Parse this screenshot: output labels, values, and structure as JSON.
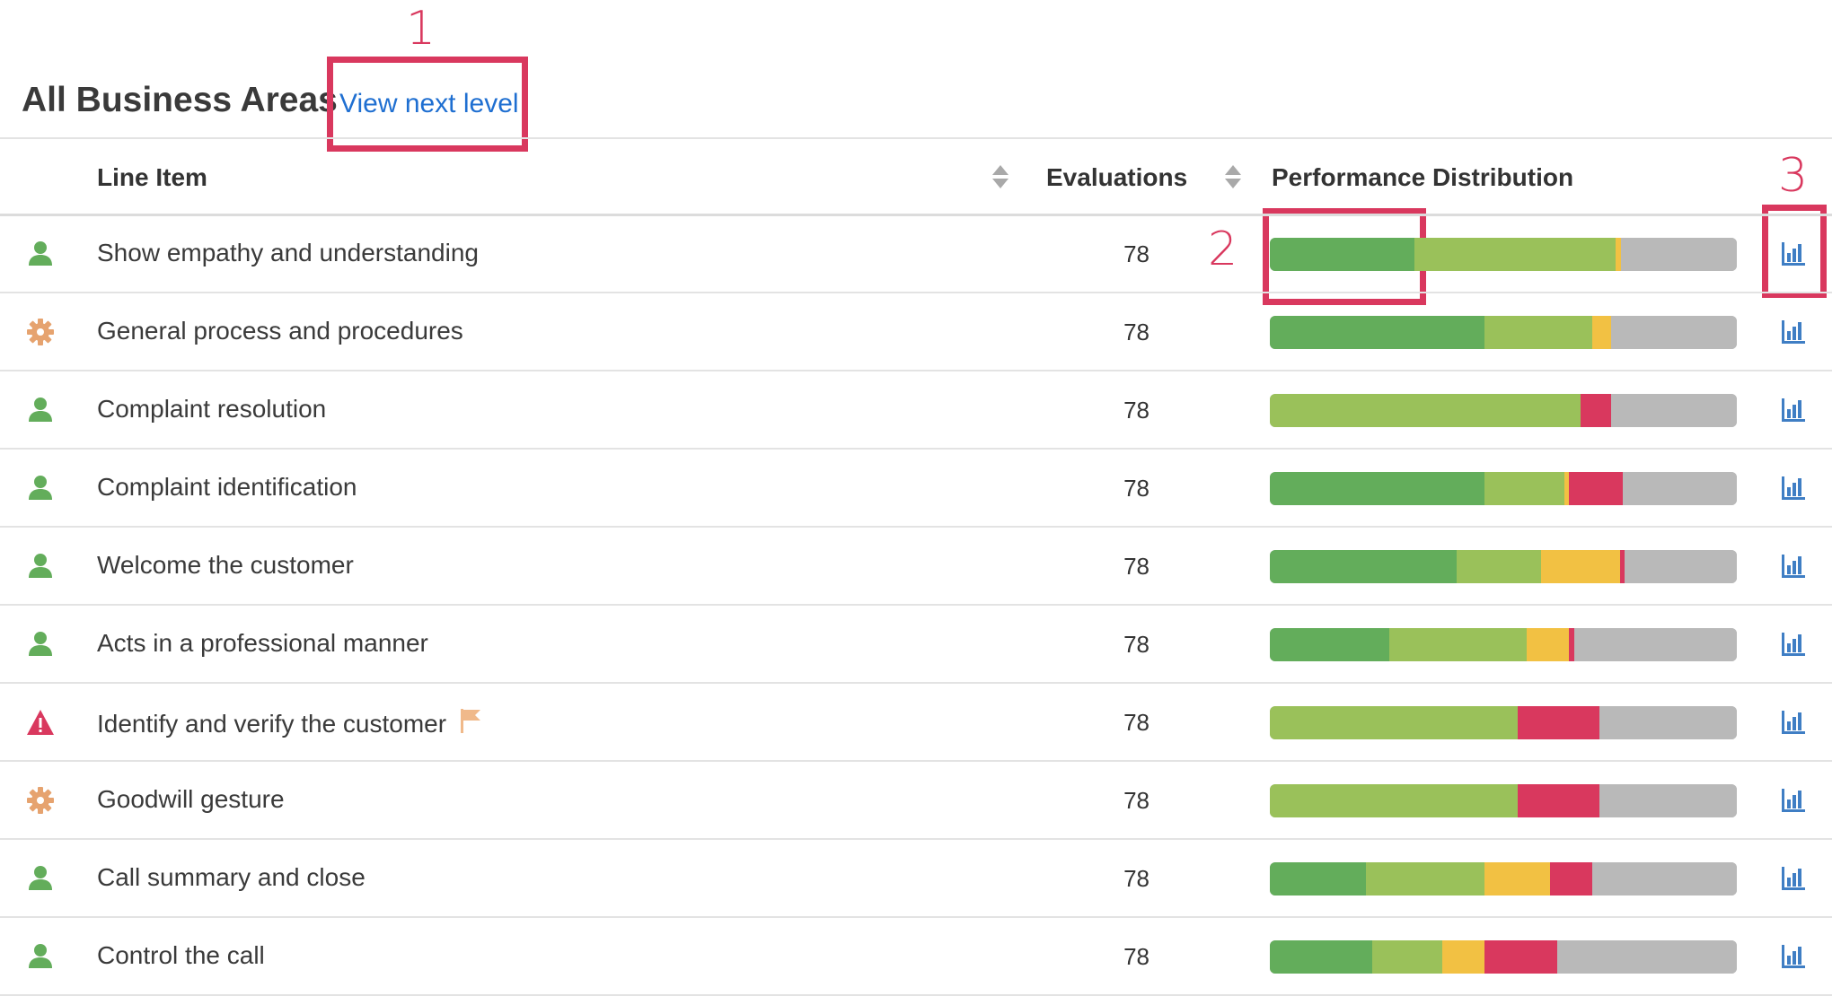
{
  "header": {
    "title": "All Business Areas",
    "next_level_link": "View next level"
  },
  "annotations": [
    "1",
    "2",
    "3"
  ],
  "columns": {
    "line_item": "Line Item",
    "evaluations": "Evaluations",
    "performance": "Performance Distribution"
  },
  "colors": {
    "excellent": "#63ad5b",
    "good": "#9ac15a",
    "fair": "#f2c143",
    "poor": "#d9385e",
    "unrated": "#b9b9b9",
    "link": "#1f6fd1",
    "chart_icon": "#3f7ec4"
  },
  "rows": [
    {
      "label": "Show empathy and understanding",
      "evaluations": "78",
      "icon": "person-icon",
      "dist": [
        31,
        43,
        1.2,
        0
      ]
    },
    {
      "label": "General process and procedures",
      "evaluations": "78",
      "icon": "gear-icon",
      "dist": [
        46,
        23,
        4,
        0
      ]
    },
    {
      "label": "Complaint resolution",
      "evaluations": "78",
      "icon": "person-icon",
      "dist": [
        0,
        66.5,
        0,
        6.5
      ]
    },
    {
      "label": "Complaint identification",
      "evaluations": "78",
      "icon": "person-icon",
      "dist": [
        46,
        17,
        1,
        11.5
      ]
    },
    {
      "label": "Welcome the customer",
      "evaluations": "78",
      "icon": "person-icon",
      "dist": [
        40,
        18,
        17,
        1
      ]
    },
    {
      "label": "Acts in a professional manner",
      "evaluations": "78",
      "icon": "person-icon",
      "dist": [
        25.5,
        29.5,
        9,
        1.2
      ]
    },
    {
      "label": "Identify and verify the customer",
      "evaluations": "78",
      "icon": "warning-icon",
      "flag": true,
      "dist": [
        0,
        53,
        0,
        17.5
      ]
    },
    {
      "label": "Goodwill gesture",
      "evaluations": "78",
      "icon": "gear-icon",
      "dist": [
        0,
        53,
        0,
        17.5
      ]
    },
    {
      "label": "Call summary and close",
      "evaluations": "78",
      "icon": "person-icon",
      "dist": [
        20.5,
        25.5,
        14,
        9
      ]
    },
    {
      "label": "Control the call",
      "evaluations": "78",
      "icon": "person-icon",
      "dist": [
        22,
        15,
        9,
        15.5
      ]
    }
  ]
}
